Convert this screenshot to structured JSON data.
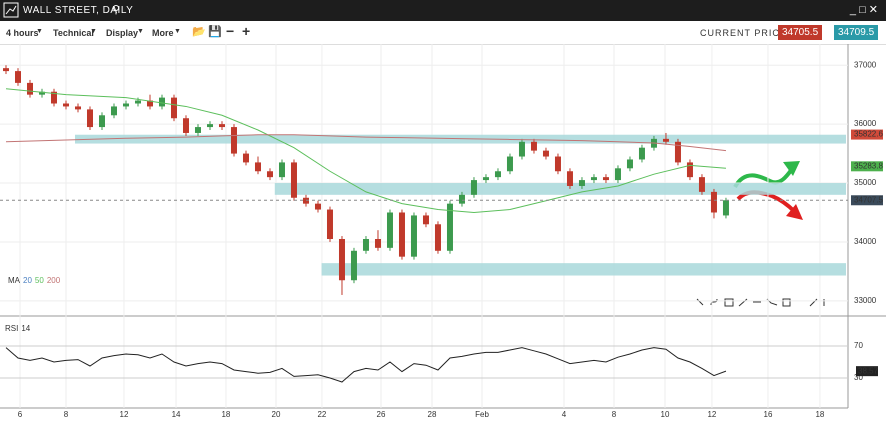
{
  "chart_data": {
    "type": "candlestick",
    "title": "WALL STREET, DAILY",
    "open": [
      36950,
      36900,
      36700,
      36500,
      36550,
      36350,
      36300,
      36250,
      35950,
      36150,
      36300,
      36350,
      36400,
      36300,
      36450,
      36100,
      35850,
      35950,
      36000,
      35950,
      35500,
      35350,
      35200,
      35100,
      35350,
      34750,
      34650,
      34550,
      34050,
      33350,
      33850,
      34050,
      33900,
      34500,
      33750,
      34450,
      34300,
      33850,
      34650,
      34800,
      35050,
      35100,
      35200,
      35450,
      35700,
      35550,
      35450,
      35200,
      34950,
      35050,
      35100,
      35050,
      35250,
      35400,
      35600,
      35750,
      35700,
      35350,
      35100,
      34850,
      34450
    ],
    "high": [
      37000,
      36950,
      36750,
      36600,
      36600,
      36400,
      36350,
      36300,
      36200,
      36350,
      36400,
      36450,
      36500,
      36500,
      36500,
      36150,
      36000,
      36050,
      36050,
      36000,
      35550,
      35450,
      35250,
      35400,
      35400,
      34800,
      34700,
      34600,
      34100,
      33900,
      34100,
      34200,
      34550,
      34550,
      34500,
      34500,
      34350,
      34700,
      34850,
      35100,
      35150,
      35250,
      35500,
      35750,
      35750,
      35600,
      35500,
      35250,
      35100,
      35150,
      35150,
      35300,
      35450,
      35650,
      35800,
      35850,
      35750,
      35400,
      35150,
      34900,
      34750
    ],
    "low": [
      36850,
      36650,
      36450,
      36450,
      36300,
      36250,
      36200,
      35900,
      35900,
      36100,
      36250,
      36300,
      36250,
      36250,
      36050,
      35800,
      35800,
      35900,
      35900,
      35450,
      35300,
      35150,
      35050,
      35050,
      34700,
      34600,
      34500,
      34000,
      33100,
      33300,
      33800,
      33850,
      33850,
      33700,
      33700,
      34250,
      33800,
      33800,
      34600,
      34750,
      35000,
      35050,
      35150,
      35400,
      35500,
      35400,
      35150,
      34900,
      34900,
      35000,
      35000,
      35000,
      35200,
      35350,
      35550,
      35650,
      35300,
      35050,
      34800,
      34400,
      34400
    ],
    "close": [
      36900,
      36700,
      36500,
      36550,
      36350,
      36300,
      36250,
      35950,
      36150,
      36300,
      36350,
      36400,
      36300,
      36450,
      36100,
      35850,
      35950,
      36000,
      35950,
      35500,
      35350,
      35200,
      35100,
      35350,
      34750,
      34650,
      34550,
      34050,
      33350,
      33850,
      34050,
      33900,
      34500,
      33750,
      34450,
      34300,
      33850,
      34650,
      34800,
      35050,
      35100,
      35200,
      35450,
      35700,
      35550,
      35450,
      35200,
      34950,
      35050,
      35100,
      35050,
      35250,
      35400,
      35600,
      35750,
      35700,
      35350,
      35100,
      34850,
      34500,
      34707.5
    ],
    "up_color": "#3c9a4e",
    "down_color": "#c0392b",
    "xlim": [
      -0.5,
      70.17
    ],
    "ylim": [
      32760,
      37360
    ],
    "yticks": [
      33000,
      34000,
      35000,
      36000,
      37000
    ],
    "grid": true,
    "xticks": [
      {
        "value": 1.17,
        "label": "6"
      },
      {
        "value": 5,
        "label": "8"
      },
      {
        "value": 9.83,
        "label": "12"
      },
      {
        "value": 14.17,
        "label": "14"
      },
      {
        "value": 18.33,
        "label": "18"
      },
      {
        "value": 22.5,
        "label": "20"
      },
      {
        "value": 26.33,
        "label": "22"
      },
      {
        "value": 31.25,
        "label": "26"
      },
      {
        "value": 35.5,
        "label": "28"
      },
      {
        "value": 39.67,
        "label": "Feb"
      },
      {
        "value": 46.5,
        "label": "4"
      },
      {
        "value": 50.67,
        "label": "8"
      },
      {
        "value": 54.92,
        "label": "10"
      },
      {
        "value": 58.83,
        "label": "12"
      },
      {
        "value": 63.5,
        "label": "16"
      },
      {
        "value": 67.83,
        "label": "18"
      }
    ],
    "ma_label": "MA",
    "ma_20_label": "20",
    "ma_20_color": "#4a7fc1",
    "series": [
      {
        "name": "50",
        "color": "#5cbf5c",
        "x": [
          0,
          5,
          10,
          15,
          18,
          21,
          24,
          27,
          30,
          33,
          36,
          39,
          42,
          45,
          48,
          51,
          54,
          57,
          60
        ],
        "values": [
          36600,
          36500,
          36450,
          36300,
          36150,
          35900,
          35600,
          35200,
          34850,
          34650,
          34550,
          34500,
          34550,
          34700,
          34850,
          34950,
          35150,
          35300,
          35250
        ]
      },
      {
        "name": "200",
        "color": "#c27474",
        "x": [
          0,
          5,
          10,
          15,
          18,
          21,
          24,
          27,
          30,
          33,
          36,
          39,
          42,
          45,
          48,
          51,
          54,
          57,
          60
        ],
        "values": [
          35700,
          35730,
          35760,
          35780,
          35800,
          35820,
          35820,
          35800,
          35780,
          35770,
          35760,
          35750,
          35740,
          35730,
          35720,
          35700,
          35680,
          35620,
          35550
        ]
      }
    ],
    "zones": [
      {
        "from": 35670,
        "to": 35820,
        "start": 5.75
      },
      {
        "from": 34800,
        "to": 35000,
        "start": 22.4
      },
      {
        "from": 33430,
        "to": 33640,
        "start": 26.3
      }
    ],
    "price_labels": [
      {
        "value": 35822.6,
        "color": "#d04a3a"
      },
      {
        "value": 35283.8,
        "color": "#4cb04c"
      },
      {
        "value": 34707.5,
        "color": "#3a4a5a"
      }
    ],
    "rsi": {
      "name": "RSI",
      "period": "14",
      "ylim": [
        -7.5,
        105
      ],
      "yticks": [
        30,
        70
      ],
      "color": "#222",
      "values": [
        68,
        55,
        52,
        55,
        50,
        52,
        53,
        45,
        55,
        58,
        60,
        59,
        55,
        60,
        50,
        45,
        48,
        50,
        48,
        40,
        38,
        36,
        37,
        42,
        32,
        33,
        34,
        30,
        25,
        38,
        42,
        40,
        50,
        38,
        48,
        46,
        40,
        55,
        57,
        60,
        62,
        62,
        65,
        68,
        64,
        60,
        54,
        48,
        50,
        52,
        50,
        56,
        60,
        65,
        68,
        66,
        55,
        50,
        42,
        33,
        38.57
      ]
    }
  },
  "toolbar": {
    "menus": [
      "4 hours",
      "Technical",
      "Display",
      "More"
    ],
    "current_price_label": "CURRENT PRICE:",
    "bid": 34705.5,
    "ask": 34709.5
  }
}
